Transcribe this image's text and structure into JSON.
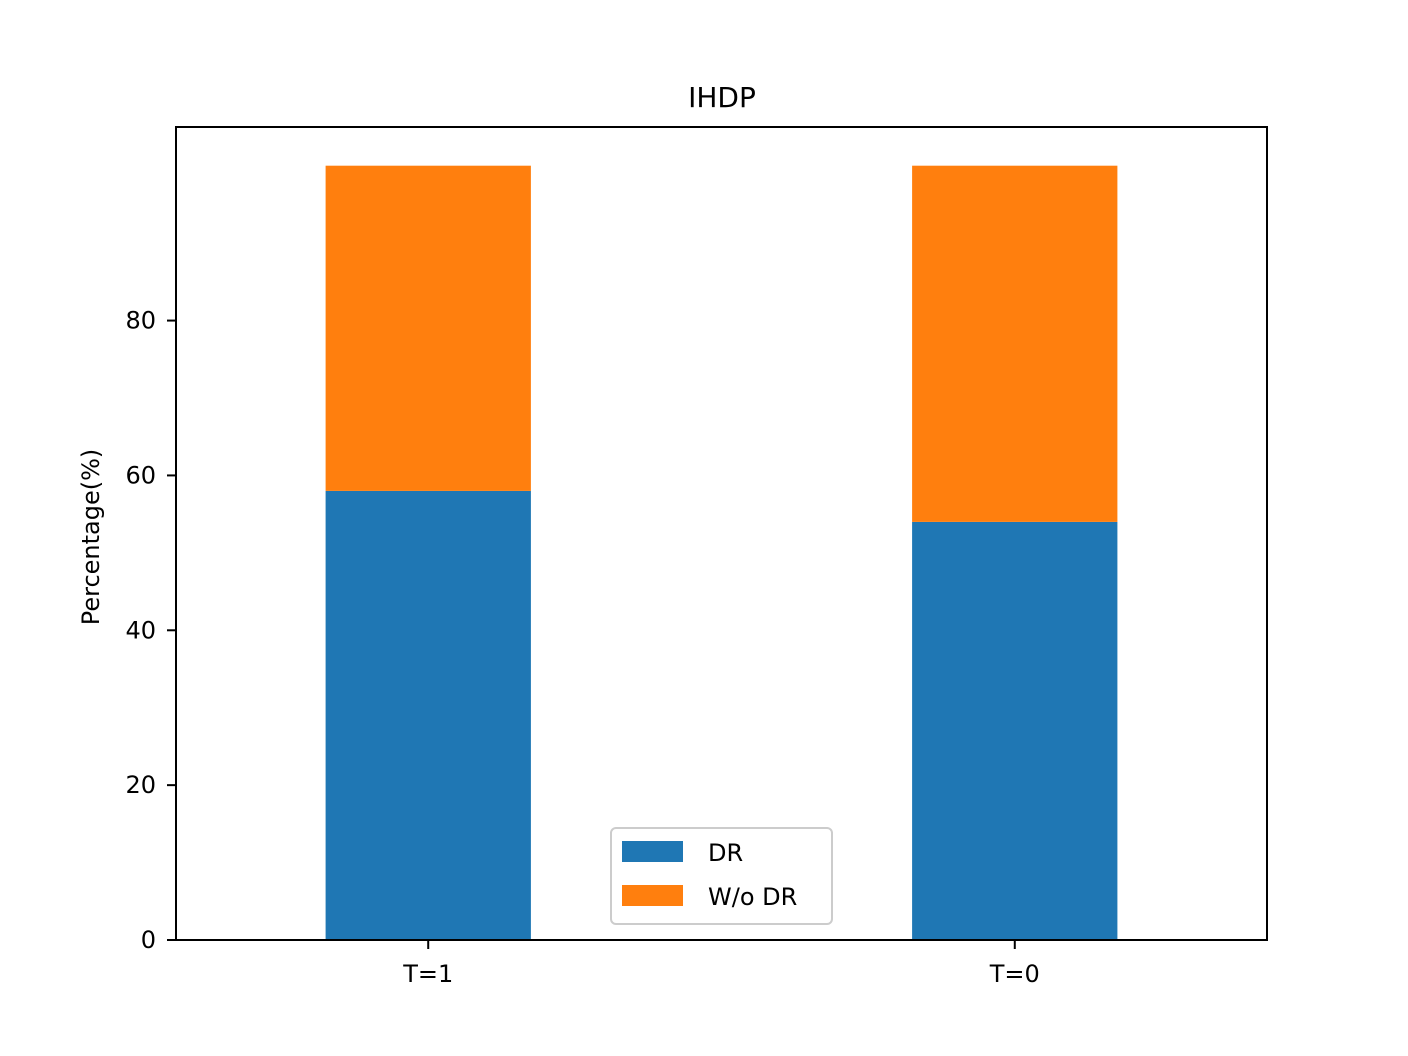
{
  "chart_data": {
    "type": "bar",
    "stacked": true,
    "title": "IHDP",
    "xlabel": "",
    "ylabel": "Percentage(%)",
    "categories": [
      "T=1",
      "T=0"
    ],
    "series": [
      {
        "name": "DR",
        "values": [
          58,
          54
        ],
        "color": "#1f77b4"
      },
      {
        "name": "W/o DR",
        "values": [
          42,
          46
        ],
        "color": "#ff7f0e"
      }
    ],
    "ylim": [
      0,
      105
    ],
    "yticks": [
      0,
      20,
      40,
      60,
      80
    ],
    "grid": false,
    "legend_position": "lower center"
  }
}
